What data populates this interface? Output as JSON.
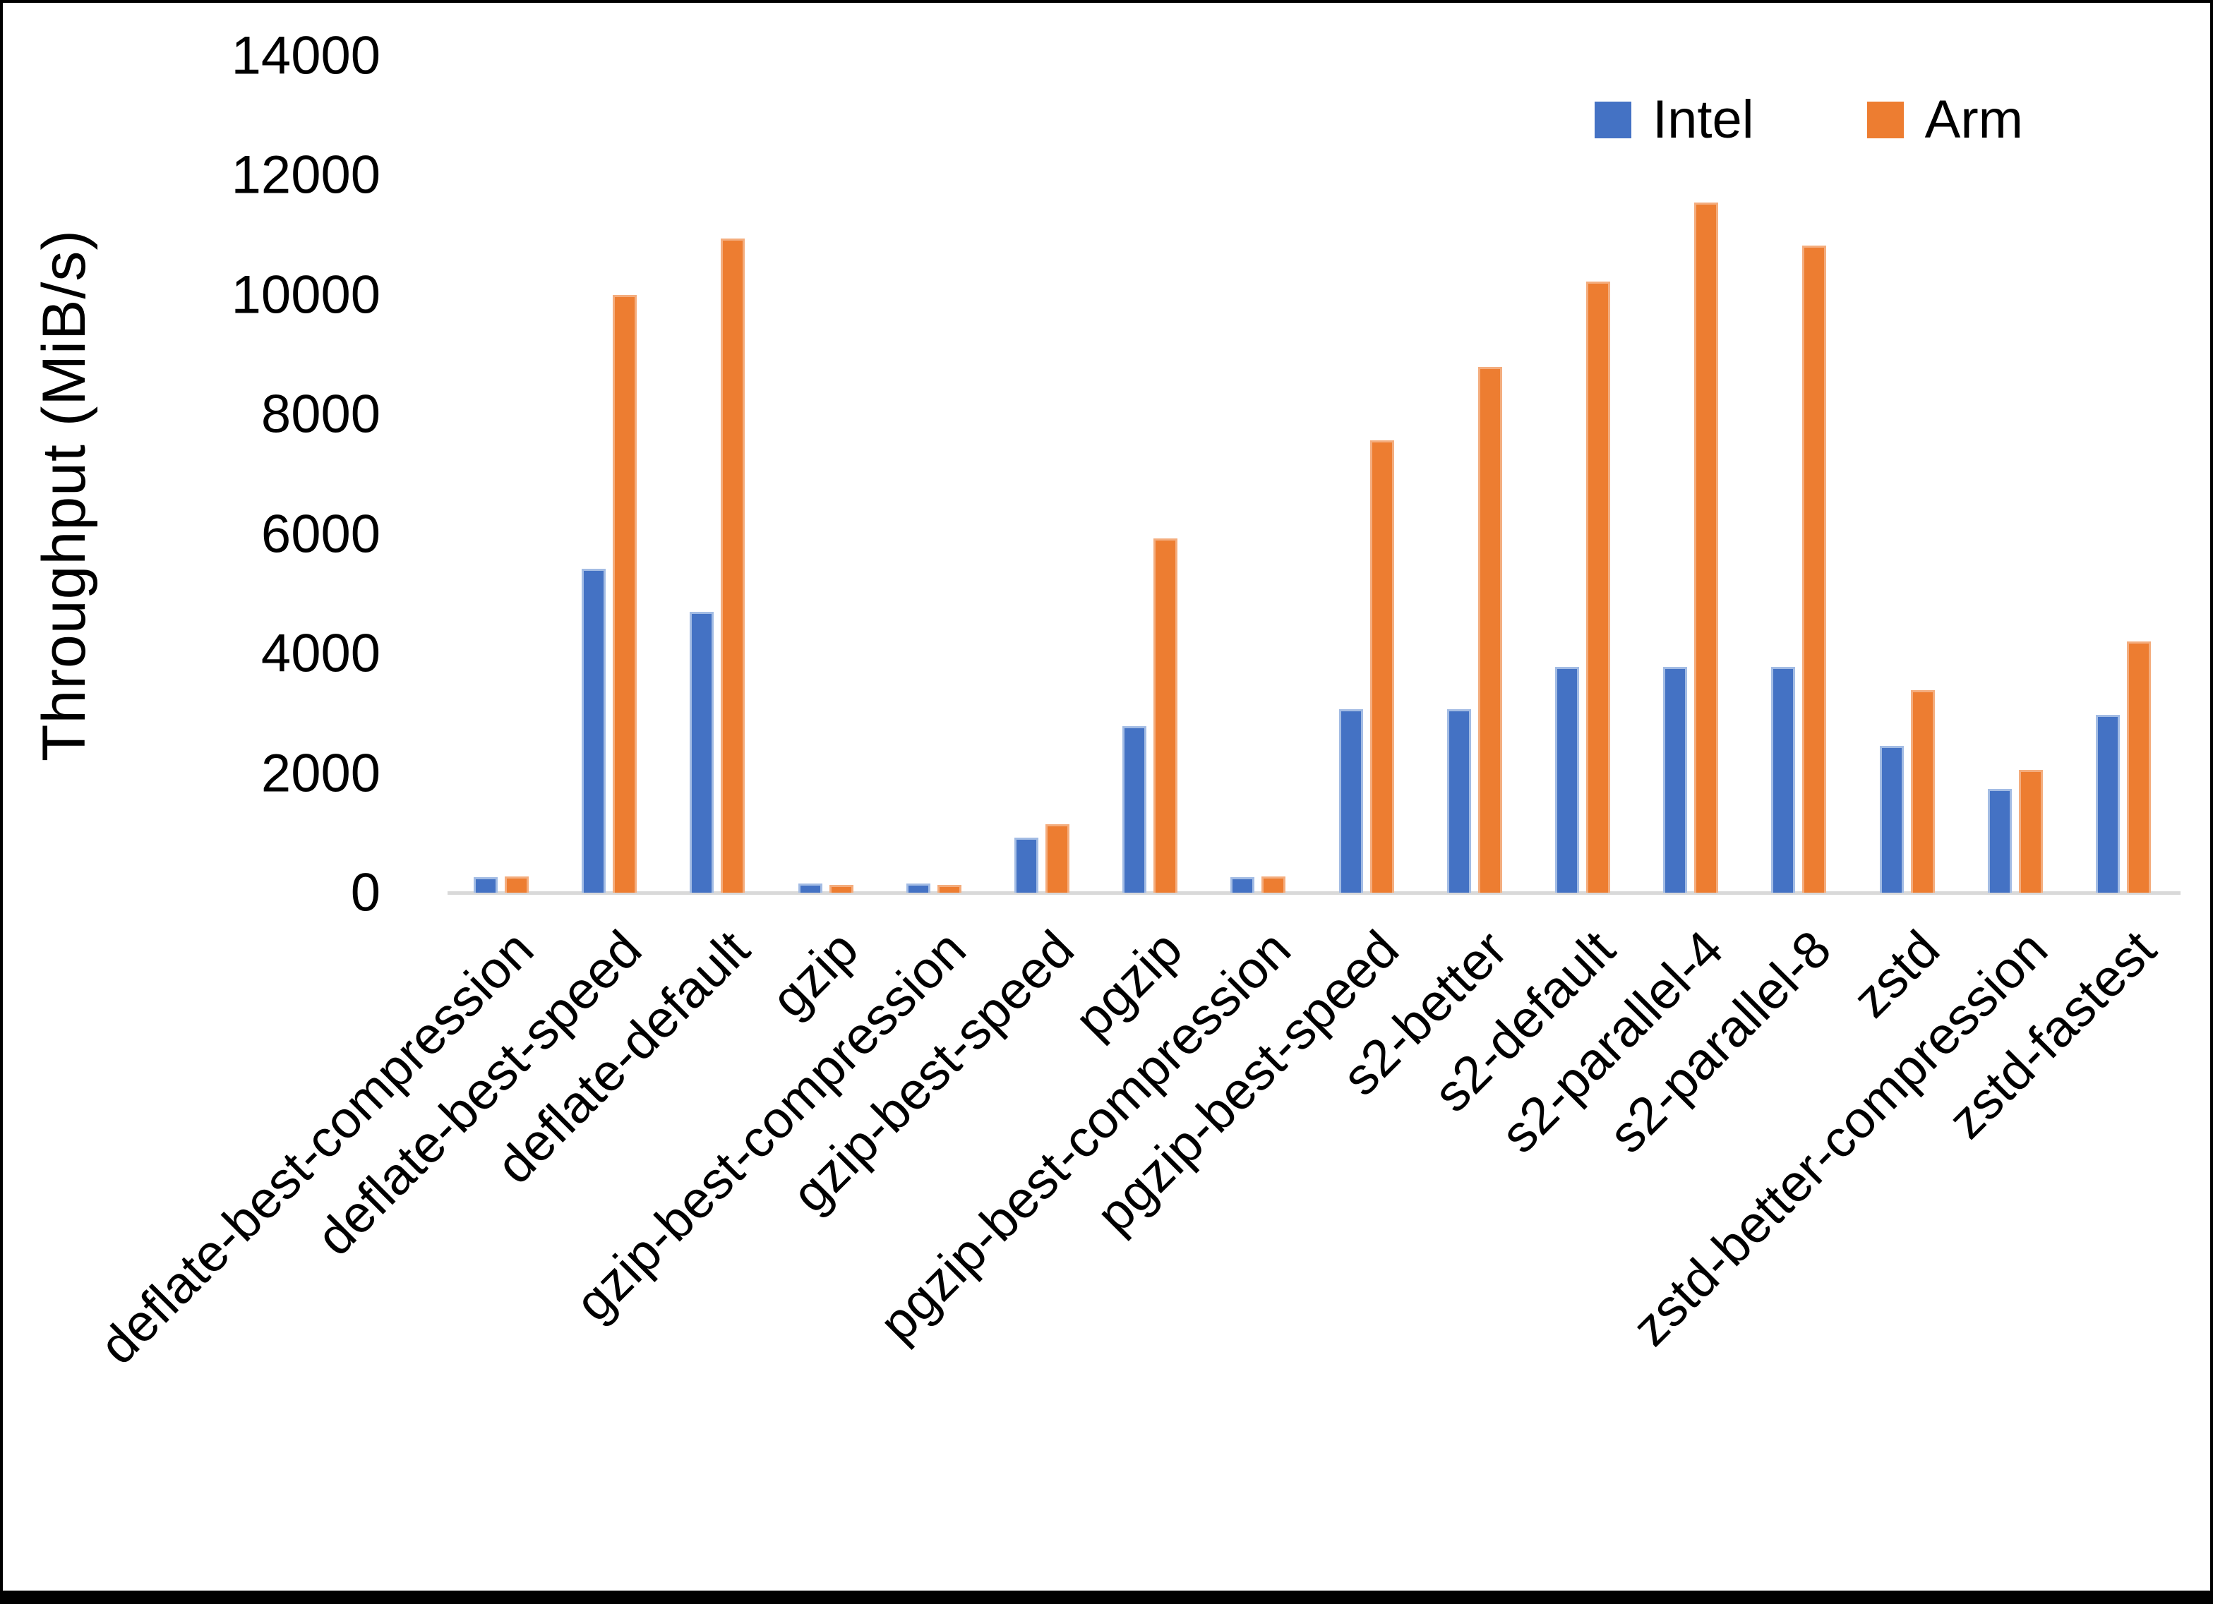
{
  "chart_data": {
    "type": "bar",
    "title": "",
    "ylabel": "Throughput (MiB/s)",
    "xlabel": "",
    "ylim": [
      0,
      14000
    ],
    "ytick_step": 2000,
    "yticks": [
      0,
      2000,
      4000,
      6000,
      8000,
      10000,
      12000,
      14000
    ],
    "grid": false,
    "legend_position": "top-right",
    "axis_line_color": "#D9D9D9",
    "text_color": "#000000",
    "categories": [
      "deflate-best-compression",
      "deflate-best-speed",
      "deflate-default",
      "gzip",
      "gzip-best-compression",
      "gzip-best-speed",
      "pgzip",
      "pgzip-best-compression",
      "pgzip-best-speed",
      "s2-better",
      "s2-default",
      "s2-parallel-4",
      "s2-parallel-8",
      "zstd",
      "zstd-better-compression",
      "zstd-fastest"
    ],
    "series": [
      {
        "name": "Intel",
        "color": "#4472C4",
        "edge_color": "#A3BCE4",
        "values": [
          260,
          5420,
          4700,
          155,
          150,
          920,
          2790,
          260,
          3070,
          3070,
          3780,
          3780,
          3780,
          2460,
          1740,
          2970
        ]
      },
      {
        "name": "Arm",
        "color": "#ED7D31",
        "edge_color": "#F4AD7E",
        "values": [
          270,
          10000,
          10940,
          130,
          125,
          1150,
          5930,
          270,
          7570,
          8790,
          10220,
          11540,
          10830,
          3390,
          2050,
          4200
        ]
      }
    ]
  }
}
